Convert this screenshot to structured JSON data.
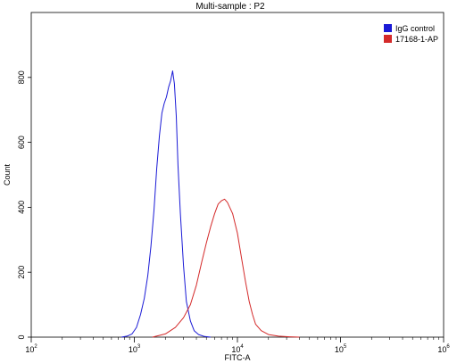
{
  "chart_data": {
    "type": "line",
    "title": "Multi-sample : P2",
    "xlabel": "FITC-A",
    "ylabel": "Count",
    "x_scale": "log",
    "xlim": [
      100,
      1000000
    ],
    "ylim": [
      0,
      1000
    ],
    "grid": false,
    "legend_position": "top-right",
    "x_ticks": [
      {
        "value": 100,
        "base": "10",
        "exp": "2"
      },
      {
        "value": 1000,
        "base": "10",
        "exp": "3"
      },
      {
        "value": 10000,
        "base": "10",
        "exp": "4"
      },
      {
        "value": 100000,
        "base": "10",
        "exp": "5"
      },
      {
        "value": 1000000,
        "base": "10",
        "exp": "6"
      }
    ],
    "y_ticks": [
      {
        "value": 0,
        "label": "0"
      },
      {
        "value": 200,
        "label": "200"
      },
      {
        "value": 400,
        "label": "400"
      },
      {
        "value": 600,
        "label": "600"
      },
      {
        "value": 800,
        "label": "800"
      }
    ],
    "series": [
      {
        "name": "IgG control",
        "color": "#1a1ad6",
        "x": [
          750,
          850,
          950,
          1050,
          1150,
          1250,
          1350,
          1450,
          1550,
          1650,
          1750,
          1850,
          1950,
          2050,
          2150,
          2250,
          2350,
          2450,
          2550,
          2650,
          2800,
          3000,
          3200,
          3500,
          3800,
          4200,
          4800,
          5500
        ],
        "y": [
          0,
          3,
          10,
          30,
          70,
          120,
          190,
          280,
          390,
          520,
          620,
          690,
          720,
          740,
          770,
          790,
          820,
          780,
          680,
          530,
          380,
          220,
          110,
          50,
          20,
          8,
          2,
          0
        ]
      },
      {
        "name": "17168-1-AP",
        "color": "#d42a2a",
        "x": [
          1500,
          2000,
          2500,
          3000,
          3500,
          4000,
          4500,
          5000,
          5500,
          6000,
          6500,
          7000,
          7500,
          8000,
          9000,
          10000,
          11000,
          12000,
          13000,
          14000,
          15000,
          17000,
          20000,
          25000,
          32000,
          40000
        ],
        "y": [
          0,
          10,
          30,
          60,
          100,
          160,
          230,
          290,
          340,
          380,
          410,
          420,
          425,
          415,
          380,
          320,
          240,
          170,
          110,
          70,
          40,
          20,
          8,
          3,
          1,
          0
        ]
      }
    ]
  }
}
